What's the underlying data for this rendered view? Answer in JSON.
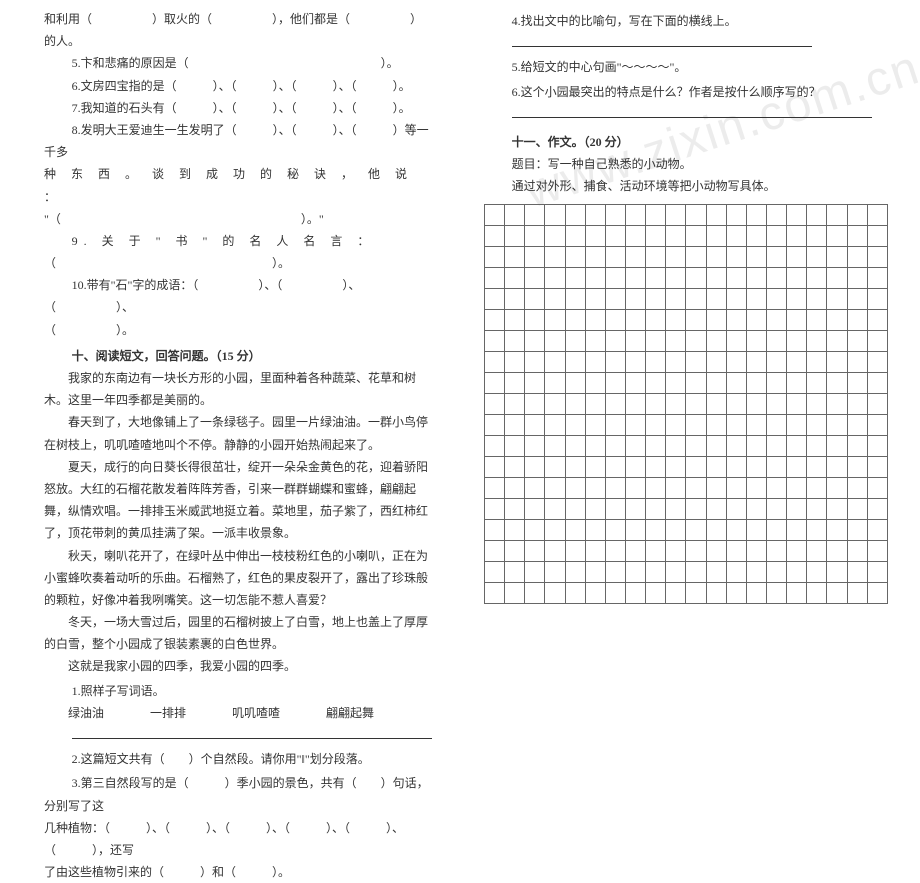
{
  "left": {
    "l1": "和利用（　　　　　）取火的（　　　　　），他们都是（　　　　　）",
    "l2": "的人。",
    "q5": "5.卞和悲痛的原因是（　　　　　　　　　　　　　　　　）。",
    "q6": "6.文房四宝指的是（　　　）、（　　　）、（　　　）、（　　　）。",
    "q7": "7.我知道的石头有（　　　）、（　　　）、（　　　）、（　　　）。",
    "q8a": "8.发明大王爱迪生一生发明了（　　　）、（　　　）、（　　　）等一千多",
    "q8b_spaced": "种 东 西 。 谈 到 成 功 的 秘 诀 ， 他 说 ：",
    "q8c": "\"（　　　　　　　　　　　　　　　　　　　　）。\"",
    "q9_spaced": "9. 关 于 \" 书 \" 的 名 人 名 言 ：",
    "q9b": "（　　　　　　　　　　　　　　　　　　）。",
    "q10a": "10.带有\"石\"字的成语：（　　　　　）、（　　　　　）、（　　　　　）、",
    "q10b": "（　　　　　）。",
    "sec10_title": "十、阅读短文，回答问题。（15 分）",
    "p1": "我家的东南边有一块长方形的小园，里面种着各种蔬菜、花草和树木。这里一年四季都是美丽的。",
    "p2": "春天到了，大地像铺上了一条绿毯子。园里一片绿油油。一群小鸟停在树枝上，叽叽喳喳地叫个不停。静静的小园开始热闹起来了。",
    "p3": "夏天，成行的向日葵长得很茁壮，绽开一朵朵金黄色的花，迎着骄阳怒放。大红的石榴花散发着阵阵芳香，引来一群群蝴蝶和蜜蜂，翩翩起舞，纵情欢唱。一排排玉米威武地挺立着。菜地里，茄子紫了，西红柿红了，顶花带刺的黄瓜挂满了架。一派丰收景象。",
    "p4": "秋天，喇叭花开了，在绿叶丛中伸出一枝枝粉红色的小喇叭，正在为小蜜蜂吹奏着动听的乐曲。石榴熟了，红色的果皮裂开了，露出了珍珠般的颗粒，好像冲着我咧嘴笑。这一切怎能不惹人喜爱？",
    "p5": "冬天，一场大雪过后，园里的石榴树披上了白雪，地上也盖上了厚厚的白雪，整个小园成了银装素裹的白色世界。",
    "p6": "这就是我家小园的四季，我爱小园的四季。",
    "rq1": "1.照样子写词语。",
    "w1": "绿油油",
    "w2": "一排排",
    "w3": "叽叽喳喳",
    "w4": "翩翩起舞",
    "rq2": "2.这篇短文共有（　　）个自然段。请你用\"‖\"划分段落。",
    "rq3a": "3.第三自然段写的是（　　　）季小园的景色，共有（　　）句话，分别写了这",
    "rq3b": "几种植物：（　　　）、（　　　）、（　　　）、（　　　）、（　　　）、（　　　），还写",
    "rq3c": "了由这些植物引来的（　　　）和（　　　）。"
  },
  "right": {
    "rq4": "4.找出文中的比喻句，写在下面的横线上。",
    "rq5": "5.给短文的中心句画\"～～～～\"。",
    "rq6": "6.这个小园最突出的特点是什么？作者是按什么顺序写的？",
    "sec11_title": "十一、作文。（20 分）",
    "topic": "题目：写一种自己熟悉的小动物。",
    "req": "通过对外形、捕食、活动环境等把小动物写具体。"
  },
  "grid": {
    "rows": 19,
    "cols": 20
  },
  "colors": {
    "text": "#333333",
    "bg": "#ffffff",
    "border": "#666666",
    "watermark": "rgba(200,200,200,0.35)"
  },
  "watermark_text": "www.zixin.com.cn"
}
